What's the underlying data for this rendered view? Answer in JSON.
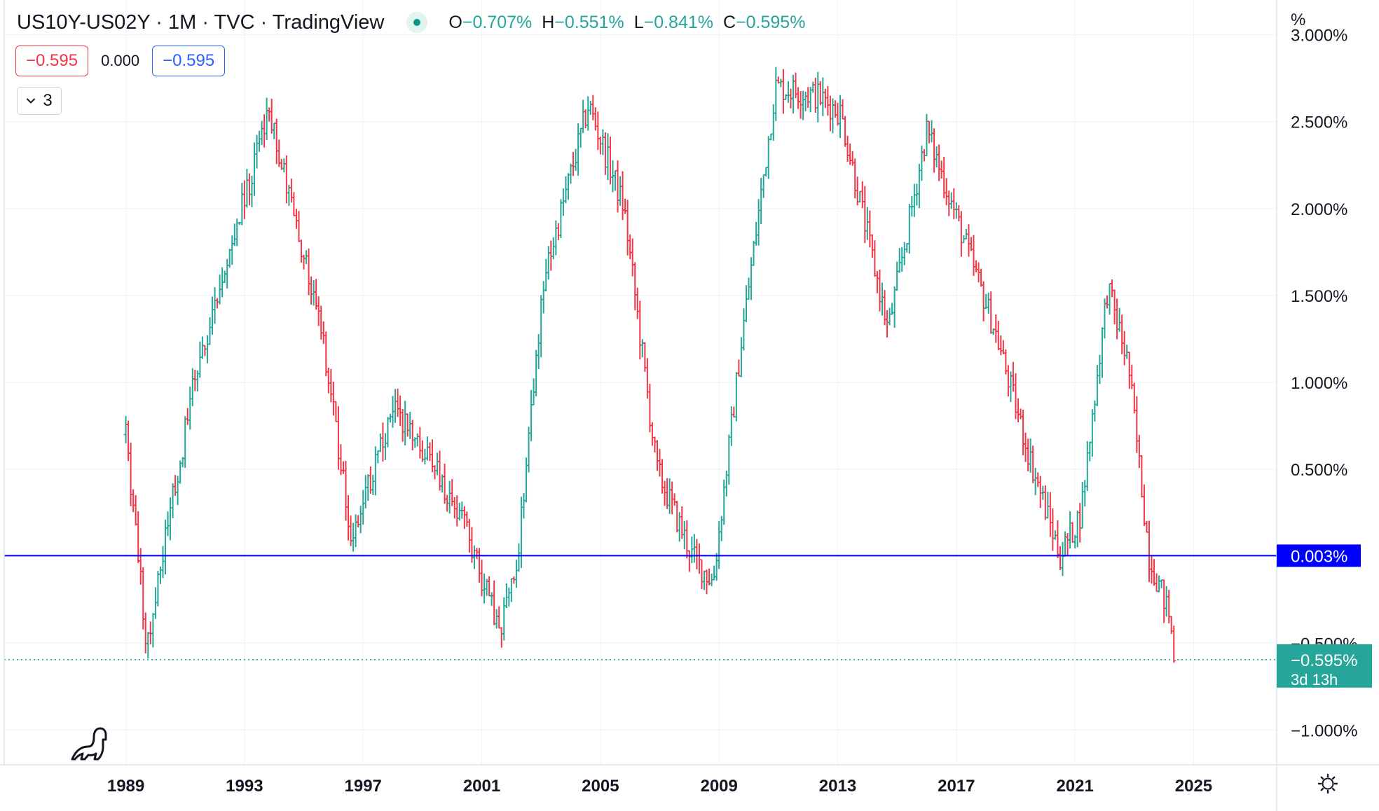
{
  "header": {
    "title": "US10Y-US02Y · 1M · TVC · TradingView",
    "ohlc": [
      {
        "key": "O",
        "value": "−0.707%"
      },
      {
        "key": "H",
        "value": "−0.551%"
      },
      {
        "key": "L",
        "value": "−0.841%"
      },
      {
        "key": "C",
        "value": "−0.595%"
      }
    ],
    "value_left": "−0.595",
    "value_mid": "0.000",
    "value_right": "−0.595",
    "collapse_count": "3"
  },
  "colors": {
    "up": "#26a69a",
    "down": "#f23645",
    "hline": "#0000ff",
    "current_label_bg": "#26a69a",
    "hline_label_bg": "#0000ff",
    "grid": "#f0f3fa"
  },
  "icons": [
    "chevron-down-icon",
    "tradingview-logo-icon",
    "settings-icon"
  ],
  "chart_data": {
    "type": "ohlc",
    "unit_label": "%",
    "title": "US10Y-US02Y · 1M · TVC · TradingView",
    "ylim": [
      -1.2,
      3.2
    ],
    "y_ticks": [
      {
        "value": 3.0,
        "label": "3.000%"
      },
      {
        "value": 2.5,
        "label": "2.500%"
      },
      {
        "value": 2.0,
        "label": "2.000%"
      },
      {
        "value": 1.5,
        "label": "1.500%"
      },
      {
        "value": 1.0,
        "label": "1.000%"
      },
      {
        "value": 0.5,
        "label": "0.500%"
      },
      {
        "value": -0.5,
        "label": "−0.500%"
      },
      {
        "value": -1.0,
        "label": "−1.000%"
      }
    ],
    "xlim": [
      1984.9,
      2027.8
    ],
    "x_ticks": [
      {
        "value": 1989,
        "label": "1989"
      },
      {
        "value": 1993,
        "label": "1993"
      },
      {
        "value": 1997,
        "label": "1997"
      },
      {
        "value": 2001,
        "label": "2001"
      },
      {
        "value": 2005,
        "label": "2005"
      },
      {
        "value": 2009,
        "label": "2009"
      },
      {
        "value": 2013,
        "label": "2013"
      },
      {
        "value": 2017,
        "label": "2017"
      },
      {
        "value": 2021,
        "label": "2021"
      },
      {
        "value": 2025,
        "label": "2025"
      }
    ],
    "horizontal_line": {
      "value": 0.003,
      "label": "0.003%"
    },
    "current_price": {
      "value": -0.595,
      "label": "−0.595%",
      "countdown": "3d 13h"
    },
    "grid": true,
    "series_anchors": [
      [
        1989.0,
        0.7
      ],
      [
        1989.7,
        -0.5
      ],
      [
        1991.3,
        1.0
      ],
      [
        1993.8,
        2.55
      ],
      [
        1995.5,
        1.4
      ],
      [
        1996.6,
        0.1
      ],
      [
        1998.0,
        0.85
      ],
      [
        1999.4,
        0.5
      ],
      [
        2000.6,
        0.1
      ],
      [
        2001.6,
        -0.45
      ],
      [
        2002.2,
        0.0
      ],
      [
        2003.1,
        1.6
      ],
      [
        2004.6,
        2.6
      ],
      [
        2005.8,
        2.0
      ],
      [
        2006.9,
        0.5
      ],
      [
        2008.1,
        0.0
      ],
      [
        2008.8,
        -0.15
      ],
      [
        2009.8,
        1.3
      ],
      [
        2010.9,
        2.7
      ],
      [
        2012.3,
        2.65
      ],
      [
        2013.1,
        2.55
      ],
      [
        2014.7,
        1.3
      ],
      [
        2016.0,
        2.45
      ],
      [
        2018.3,
        1.3
      ],
      [
        2019.5,
        0.55
      ],
      [
        2020.5,
        0.0
      ],
      [
        2021.2,
        0.25
      ],
      [
        2022.1,
        1.55
      ],
      [
        2022.8,
        1.1
      ],
      [
        2023.5,
        0.0
      ],
      [
        2024.2,
        -0.35
      ],
      [
        2024.4,
        -0.72
      ]
    ]
  },
  "axis": {
    "unit": "%"
  }
}
